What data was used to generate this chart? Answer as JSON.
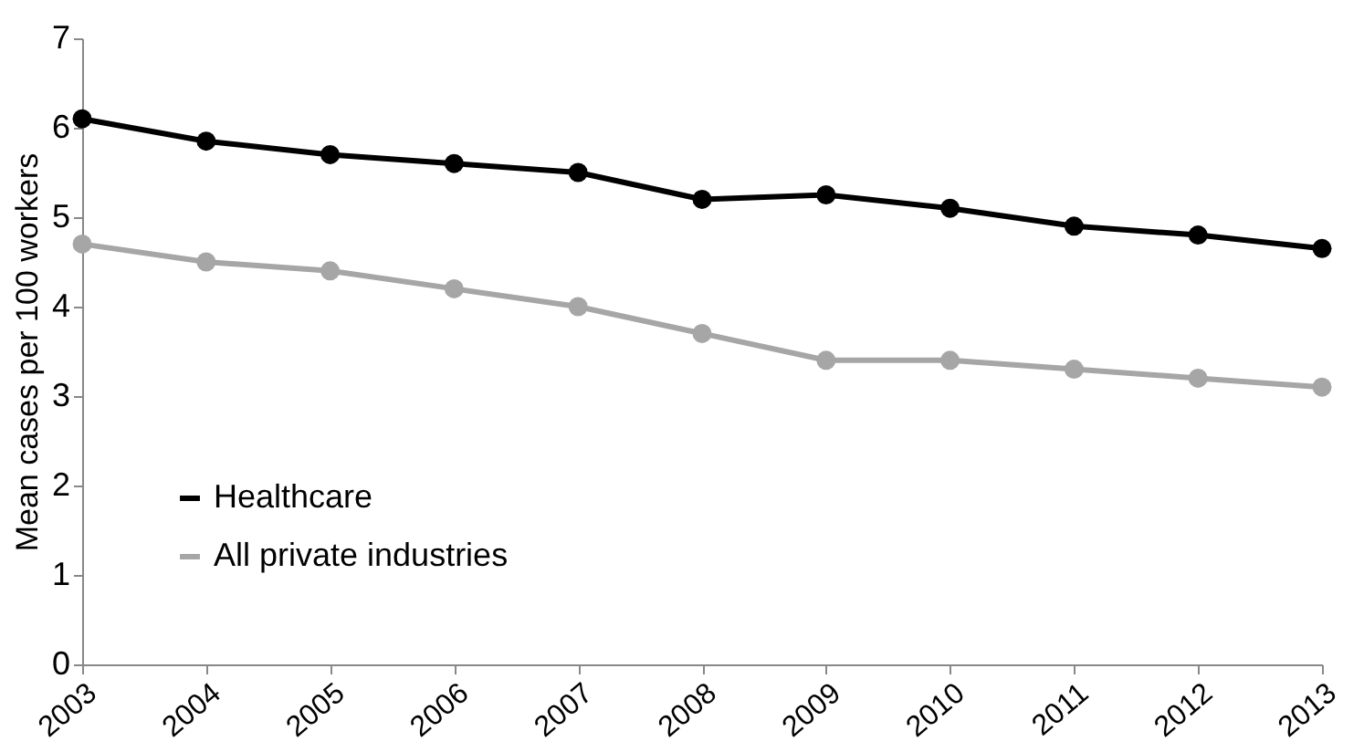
{
  "chart_data": {
    "type": "line",
    "ylabel": "Mean cases per 100 workers",
    "categories": [
      "2003",
      "2004",
      "2005",
      "2006",
      "2007",
      "2008",
      "2009",
      "2010",
      "2011",
      "2012",
      "2013"
    ],
    "series": [
      {
        "name": "Healthcare",
        "color": "#000000",
        "values": [
          6.1,
          5.85,
          5.7,
          5.6,
          5.5,
          5.2,
          5.25,
          5.1,
          4.9,
          4.8,
          4.65
        ]
      },
      {
        "name": "All private industries",
        "color": "#a6a6a6",
        "values": [
          4.7,
          4.5,
          4.4,
          4.2,
          4.0,
          3.7,
          3.4,
          3.4,
          3.3,
          3.2,
          3.1
        ]
      }
    ],
    "ylim": [
      0,
      7
    ],
    "yticks": [
      0,
      1,
      2,
      3,
      4,
      5,
      6,
      7
    ],
    "grid": false,
    "legend": "bottom left",
    "marker": "circle",
    "line_style": "solid"
  }
}
